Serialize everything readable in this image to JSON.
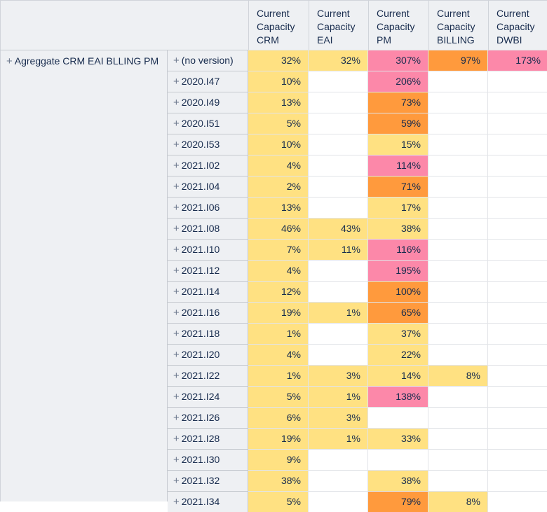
{
  "columns": [
    "Current\nCapacity\nCRM",
    "Current\nCapacity\nEAI",
    "Current\nCapacity\nPM",
    "Current\nCapacity\nBILLING",
    "Current\nCapacity\nDWBI"
  ],
  "group_label": "Agreggate CRM EAI BLLING PM",
  "rows": [
    {
      "version": "(no version)",
      "cells": [
        {
          "v": "32%",
          "c": "y"
        },
        {
          "v": "32%",
          "c": "y"
        },
        {
          "v": "307%",
          "c": "p"
        },
        {
          "v": "97%",
          "c": "o"
        },
        {
          "v": "173%",
          "c": "p"
        }
      ]
    },
    {
      "version": "2020.I47",
      "cells": [
        {
          "v": "10%",
          "c": "y"
        },
        {
          "v": "",
          "c": "none"
        },
        {
          "v": "206%",
          "c": "p"
        },
        {
          "v": "",
          "c": "none"
        },
        {
          "v": "",
          "c": "none"
        }
      ]
    },
    {
      "version": "2020.I49",
      "cells": [
        {
          "v": "13%",
          "c": "y"
        },
        {
          "v": "",
          "c": "none"
        },
        {
          "v": "73%",
          "c": "o"
        },
        {
          "v": "",
          "c": "none"
        },
        {
          "v": "",
          "c": "none"
        }
      ]
    },
    {
      "version": "2020.I51",
      "cells": [
        {
          "v": "5%",
          "c": "y"
        },
        {
          "v": "",
          "c": "none"
        },
        {
          "v": "59%",
          "c": "o"
        },
        {
          "v": "",
          "c": "none"
        },
        {
          "v": "",
          "c": "none"
        }
      ]
    },
    {
      "version": "2020.I53",
      "cells": [
        {
          "v": "10%",
          "c": "y"
        },
        {
          "v": "",
          "c": "none"
        },
        {
          "v": "15%",
          "c": "y"
        },
        {
          "v": "",
          "c": "none"
        },
        {
          "v": "",
          "c": "none"
        }
      ]
    },
    {
      "version": "2021.I02",
      "cells": [
        {
          "v": "4%",
          "c": "y"
        },
        {
          "v": "",
          "c": "none"
        },
        {
          "v": "114%",
          "c": "p"
        },
        {
          "v": "",
          "c": "none"
        },
        {
          "v": "",
          "c": "none"
        }
      ]
    },
    {
      "version": "2021.I04",
      "cells": [
        {
          "v": "2%",
          "c": "y"
        },
        {
          "v": "",
          "c": "none"
        },
        {
          "v": "71%",
          "c": "o"
        },
        {
          "v": "",
          "c": "none"
        },
        {
          "v": "",
          "c": "none"
        }
      ]
    },
    {
      "version": "2021.I06",
      "cells": [
        {
          "v": "13%",
          "c": "y"
        },
        {
          "v": "",
          "c": "none"
        },
        {
          "v": "17%",
          "c": "y"
        },
        {
          "v": "",
          "c": "none"
        },
        {
          "v": "",
          "c": "none"
        }
      ]
    },
    {
      "version": "2021.I08",
      "cells": [
        {
          "v": "46%",
          "c": "y"
        },
        {
          "v": "43%",
          "c": "y"
        },
        {
          "v": "38%",
          "c": "y"
        },
        {
          "v": "",
          "c": "none"
        },
        {
          "v": "",
          "c": "none"
        }
      ]
    },
    {
      "version": "2021.I10",
      "cells": [
        {
          "v": "7%",
          "c": "y"
        },
        {
          "v": "11%",
          "c": "y"
        },
        {
          "v": "116%",
          "c": "p"
        },
        {
          "v": "",
          "c": "none"
        },
        {
          "v": "",
          "c": "none"
        }
      ]
    },
    {
      "version": "2021.I12",
      "cells": [
        {
          "v": "4%",
          "c": "y"
        },
        {
          "v": "",
          "c": "none"
        },
        {
          "v": "195%",
          "c": "p"
        },
        {
          "v": "",
          "c": "none"
        },
        {
          "v": "",
          "c": "none"
        }
      ]
    },
    {
      "version": "2021.I14",
      "cells": [
        {
          "v": "12%",
          "c": "y"
        },
        {
          "v": "",
          "c": "none"
        },
        {
          "v": "100%",
          "c": "o"
        },
        {
          "v": "",
          "c": "none"
        },
        {
          "v": "",
          "c": "none"
        }
      ]
    },
    {
      "version": "2021.I16",
      "cells": [
        {
          "v": "19%",
          "c": "y"
        },
        {
          "v": "1%",
          "c": "y"
        },
        {
          "v": "65%",
          "c": "o"
        },
        {
          "v": "",
          "c": "none"
        },
        {
          "v": "",
          "c": "none"
        }
      ]
    },
    {
      "version": "2021.I18",
      "cells": [
        {
          "v": "1%",
          "c": "y"
        },
        {
          "v": "",
          "c": "none"
        },
        {
          "v": "37%",
          "c": "y"
        },
        {
          "v": "",
          "c": "none"
        },
        {
          "v": "",
          "c": "none"
        }
      ]
    },
    {
      "version": "2021.I20",
      "cells": [
        {
          "v": "4%",
          "c": "y"
        },
        {
          "v": "",
          "c": "none"
        },
        {
          "v": "22%",
          "c": "y"
        },
        {
          "v": "",
          "c": "none"
        },
        {
          "v": "",
          "c": "none"
        }
      ]
    },
    {
      "version": "2021.I22",
      "cells": [
        {
          "v": "1%",
          "c": "y"
        },
        {
          "v": "3%",
          "c": "y"
        },
        {
          "v": "14%",
          "c": "y"
        },
        {
          "v": "8%",
          "c": "y"
        },
        {
          "v": "",
          "c": "none"
        }
      ]
    },
    {
      "version": "2021.I24",
      "cells": [
        {
          "v": "5%",
          "c": "y"
        },
        {
          "v": "1%",
          "c": "y"
        },
        {
          "v": "138%",
          "c": "p"
        },
        {
          "v": "",
          "c": "none"
        },
        {
          "v": "",
          "c": "none"
        }
      ]
    },
    {
      "version": "2021.I26",
      "cells": [
        {
          "v": "6%",
          "c": "y"
        },
        {
          "v": "3%",
          "c": "y"
        },
        {
          "v": "",
          "c": "none"
        },
        {
          "v": "",
          "c": "none"
        },
        {
          "v": "",
          "c": "none"
        }
      ]
    },
    {
      "version": "2021.I28",
      "cells": [
        {
          "v": "19%",
          "c": "y"
        },
        {
          "v": "1%",
          "c": "y"
        },
        {
          "v": "33%",
          "c": "y"
        },
        {
          "v": "",
          "c": "none"
        },
        {
          "v": "",
          "c": "none"
        }
      ]
    },
    {
      "version": "2021.I30",
      "cells": [
        {
          "v": "9%",
          "c": "y"
        },
        {
          "v": "",
          "c": "none"
        },
        {
          "v": "",
          "c": "none"
        },
        {
          "v": "",
          "c": "none"
        },
        {
          "v": "",
          "c": "none"
        }
      ]
    },
    {
      "version": "2021.I32",
      "cells": [
        {
          "v": "38%",
          "c": "y"
        },
        {
          "v": "",
          "c": "none"
        },
        {
          "v": "38%",
          "c": "y"
        },
        {
          "v": "",
          "c": "none"
        },
        {
          "v": "",
          "c": "none"
        }
      ]
    },
    {
      "version": "2021.I34",
      "cells": [
        {
          "v": "5%",
          "c": "y"
        },
        {
          "v": "",
          "c": "none"
        },
        {
          "v": "79%",
          "c": "o"
        },
        {
          "v": "8%",
          "c": "y"
        },
        {
          "v": "",
          "c": "none"
        }
      ]
    }
  ],
  "colors": {
    "low": "#ffe182",
    "mid": "#ff9a3d",
    "high": "#fc88a9",
    "header": "#eef0f3"
  }
}
